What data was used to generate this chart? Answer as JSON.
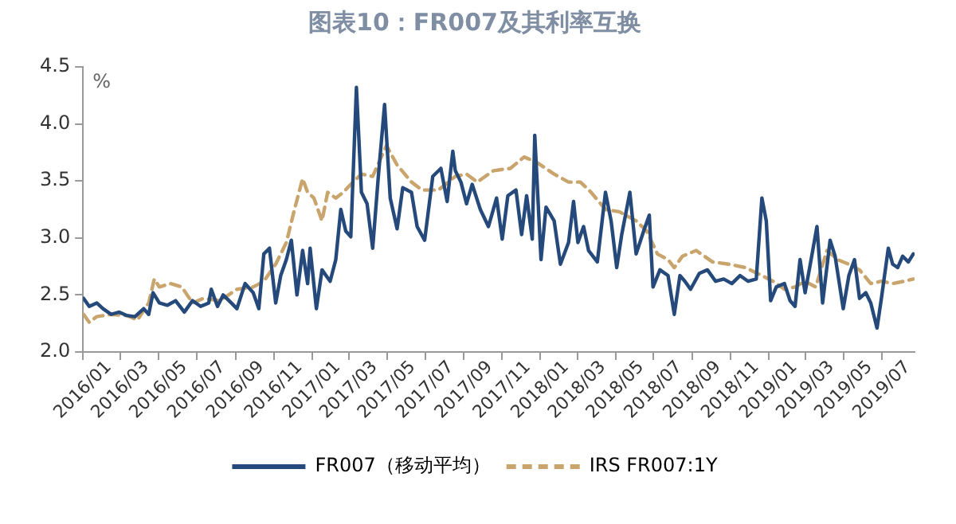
{
  "chart_data": {
    "type": "line",
    "title": "图表10：FR007及其利率互换",
    "ylabel": "%",
    "xlim": [
      "2016-01-01",
      "2019-08-22"
    ],
    "xticks": [
      {
        "value": "2016-01",
        "label": "2016/01"
      },
      {
        "value": "2016-03",
        "label": "2016/03"
      },
      {
        "value": "2016-05",
        "label": "2016/05"
      },
      {
        "value": "2016-07",
        "label": "2016/07"
      },
      {
        "value": "2016-09",
        "label": "2016/09"
      },
      {
        "value": "2016-11",
        "label": "2016/11"
      },
      {
        "value": "2017-01",
        "label": "2017/01"
      },
      {
        "value": "2017-03",
        "label": "2017/03"
      },
      {
        "value": "2017-05",
        "label": "2017/05"
      },
      {
        "value": "2017-07",
        "label": "2017/07"
      },
      {
        "value": "2017-09",
        "label": "2017/09"
      },
      {
        "value": "2017-11",
        "label": "2017/11"
      },
      {
        "value": "2018-01",
        "label": "2018/01"
      },
      {
        "value": "2018-03",
        "label": "2018/03"
      },
      {
        "value": "2018-05",
        "label": "2018/05"
      },
      {
        "value": "2018-07",
        "label": "2018/07"
      },
      {
        "value": "2018-09",
        "label": "2018/09"
      },
      {
        "value": "2018-11",
        "label": "2018/11"
      },
      {
        "value": "2019-01",
        "label": "2019/01"
      },
      {
        "value": "2019-03",
        "label": "2019/03"
      },
      {
        "value": "2019-05",
        "label": "2019/05"
      },
      {
        "value": "2019-07",
        "label": "2019/07"
      }
    ],
    "ylim": [
      2.0,
      4.5
    ],
    "yticks": [
      {
        "value": 2,
        "label": "2.0"
      },
      {
        "value": 2.5,
        "label": "2.5"
      },
      {
        "value": 3,
        "label": "3.0"
      },
      {
        "value": 3.5,
        "label": "3.5"
      },
      {
        "value": 4,
        "label": "4.0"
      },
      {
        "value": 4.5,
        "label": "4.5"
      }
    ],
    "grid": false,
    "legend": "bottom",
    "marker": "none",
    "series": [
      {
        "name": "FR007（移动平均）",
        "color": "#24497a",
        "line_style": "solid",
        "x": [
          "2016-01-02",
          "2016-01-11",
          "2016-01-23",
          "2016-02-02",
          "2016-02-15",
          "2016-02-28",
          "2016-03-11",
          "2016-03-24",
          "2016-04-07",
          "2016-04-15",
          "2016-04-22",
          "2016-05-02",
          "2016-05-15",
          "2016-05-28",
          "2016-06-11",
          "2016-06-24",
          "2016-07-07",
          "2016-07-20",
          "2016-07-24",
          "2016-08-03",
          "2016-08-12",
          "2016-08-25",
          "2016-09-03",
          "2016-09-16",
          "2016-09-29",
          "2016-10-08",
          "2016-10-16",
          "2016-10-25",
          "2016-11-04",
          "2016-11-12",
          "2016-11-21",
          "2016-11-29",
          "2016-12-08",
          "2016-12-17",
          "2016-12-25",
          "2016-12-29",
          "2017-01-08",
          "2017-01-17",
          "2017-01-30",
          "2017-02-08",
          "2017-02-16",
          "2017-02-24",
          "2017-03-04",
          "2017-03-13",
          "2017-03-21",
          "2017-03-30",
          "2017-04-08",
          "2017-04-17",
          "2017-04-27",
          "2017-05-06",
          "2017-05-17",
          "2017-05-26",
          "2017-06-09",
          "2017-06-18",
          "2017-06-30",
          "2017-07-13",
          "2017-07-26",
          "2017-08-05",
          "2017-08-14",
          "2017-08-18",
          "2017-08-27",
          "2017-09-05",
          "2017-09-14",
          "2017-09-27",
          "2017-10-10",
          "2017-10-23",
          "2017-11-01",
          "2017-11-10",
          "2017-11-23",
          "2017-12-02",
          "2017-12-10",
          "2017-12-19",
          "2017-12-23",
          "2018-01-02",
          "2018-01-10",
          "2018-01-23",
          "2018-02-02",
          "2018-02-15",
          "2018-02-23",
          "2018-03-02",
          "2018-03-11",
          "2018-03-19",
          "2018-04-02",
          "2018-04-15",
          "2018-04-24",
          "2018-05-03",
          "2018-05-11",
          "2018-05-24",
          "2018-06-03",
          "2018-06-15",
          "2018-06-24",
          "2018-06-30",
          "2018-07-11",
          "2018-07-24",
          "2018-08-03",
          "2018-08-12",
          "2018-08-20",
          "2018-08-29",
          "2018-09-12",
          "2018-09-25",
          "2018-10-08",
          "2018-10-21",
          "2018-11-03",
          "2018-11-16",
          "2018-11-29",
          "2018-12-12",
          "2018-12-21",
          "2018-12-28",
          "2019-01-04",
          "2019-01-13",
          "2019-01-26",
          "2019-02-04",
          "2019-02-12",
          "2019-02-20",
          "2019-02-28",
          "2019-03-09",
          "2019-03-19",
          "2019-03-28",
          "2019-04-09",
          "2019-04-17",
          "2019-04-30",
          "2019-05-09",
          "2019-05-18",
          "2019-05-26",
          "2019-06-05",
          "2019-06-13",
          "2019-06-23",
          "2019-06-30",
          "2019-07-11",
          "2019-07-18",
          "2019-07-26",
          "2019-08-03",
          "2019-08-12",
          "2019-08-20"
        ],
        "values": [
          2.47,
          2.4,
          2.43,
          2.38,
          2.33,
          2.35,
          2.32,
          2.31,
          2.38,
          2.33,
          2.52,
          2.43,
          2.41,
          2.45,
          2.35,
          2.45,
          2.4,
          2.43,
          2.55,
          2.4,
          2.5,
          2.43,
          2.38,
          2.6,
          2.52,
          2.38,
          2.86,
          2.91,
          2.43,
          2.67,
          2.81,
          2.98,
          2.5,
          2.89,
          2.6,
          2.91,
          2.38,
          2.72,
          2.62,
          2.81,
          3.25,
          3.06,
          3.01,
          4.32,
          3.4,
          3.3,
          2.91,
          3.54,
          4.17,
          3.35,
          3.08,
          3.44,
          3.4,
          3.1,
          2.98,
          3.54,
          3.61,
          3.32,
          3.76,
          3.59,
          3.49,
          3.3,
          3.47,
          3.25,
          3.1,
          3.35,
          2.99,
          3.37,
          3.42,
          3.03,
          3.37,
          2.99,
          3.9,
          2.81,
          3.27,
          3.15,
          2.77,
          2.96,
          3.32,
          2.96,
          3.1,
          2.89,
          2.79,
          3.4,
          3.15,
          2.74,
          3.03,
          3.4,
          2.86,
          3.06,
          3.2,
          2.57,
          2.72,
          2.67,
          2.33,
          2.67,
          2.62,
          2.55,
          2.69,
          2.72,
          2.62,
          2.64,
          2.6,
          2.67,
          2.62,
          2.64,
          3.35,
          3.15,
          2.45,
          2.57,
          2.6,
          2.45,
          2.4,
          2.81,
          2.52,
          2.79,
          3.1,
          2.43,
          2.98,
          2.84,
          2.38,
          2.67,
          2.81,
          2.47,
          2.52,
          2.43,
          2.21,
          2.47,
          2.91,
          2.77,
          2.74,
          2.84,
          2.79,
          2.86
        ]
      },
      {
        "name": "IRS FR007:1Y",
        "color": "#c9a46c",
        "line_style": "dashed",
        "x": [
          "2016-01-02",
          "2016-01-11",
          "2016-01-23",
          "2016-02-15",
          "2016-03-11",
          "2016-03-28",
          "2016-04-15",
          "2016-04-24",
          "2016-05-02",
          "2016-05-20",
          "2016-06-07",
          "2016-06-24",
          "2016-07-11",
          "2016-08-07",
          "2016-09-03",
          "2016-09-29",
          "2016-10-16",
          "2016-11-04",
          "2016-11-21",
          "2016-12-04",
          "2016-12-17",
          "2016-12-25",
          "2017-01-04",
          "2017-01-17",
          "2017-01-26",
          "2017-02-08",
          "2017-02-20",
          "2017-03-04",
          "2017-03-21",
          "2017-04-08",
          "2017-04-30",
          "2017-05-17",
          "2017-06-09",
          "2017-06-26",
          "2017-07-22",
          "2017-08-18",
          "2017-09-05",
          "2017-09-22",
          "2017-10-18",
          "2017-11-14",
          "2017-12-06",
          "2017-12-27",
          "2018-01-23",
          "2018-02-15",
          "2018-03-06",
          "2018-03-23",
          "2018-04-15",
          "2018-05-07",
          "2018-06-03",
          "2018-06-20",
          "2018-07-07",
          "2018-07-24",
          "2018-08-03",
          "2018-08-16",
          "2018-09-07",
          "2018-10-03",
          "2018-10-29",
          "2018-11-25",
          "2018-12-21",
          "2019-01-08",
          "2019-01-26",
          "2019-02-12",
          "2019-02-28",
          "2019-03-17",
          "2019-04-04",
          "2019-04-21",
          "2019-05-09",
          "2019-05-26",
          "2019-06-13",
          "2019-06-30",
          "2019-07-18",
          "2019-08-05",
          "2019-08-20"
        ],
        "values": [
          2.33,
          2.26,
          2.31,
          2.33,
          2.32,
          2.28,
          2.43,
          2.64,
          2.57,
          2.6,
          2.57,
          2.43,
          2.47,
          2.45,
          2.55,
          2.57,
          2.62,
          2.77,
          2.96,
          3.25,
          3.52,
          3.4,
          3.35,
          3.15,
          3.4,
          3.35,
          3.4,
          3.47,
          3.56,
          3.54,
          3.81,
          3.64,
          3.49,
          3.42,
          3.42,
          3.54,
          3.56,
          3.49,
          3.59,
          3.61,
          3.71,
          3.66,
          3.56,
          3.49,
          3.49,
          3.4,
          3.25,
          3.23,
          3.15,
          3.06,
          2.86,
          2.81,
          2.74,
          2.84,
          2.89,
          2.79,
          2.77,
          2.74,
          2.67,
          2.62,
          2.55,
          2.57,
          2.62,
          2.57,
          2.89,
          2.81,
          2.77,
          2.72,
          2.6,
          2.62,
          2.6,
          2.62,
          2.64
        ]
      }
    ]
  }
}
